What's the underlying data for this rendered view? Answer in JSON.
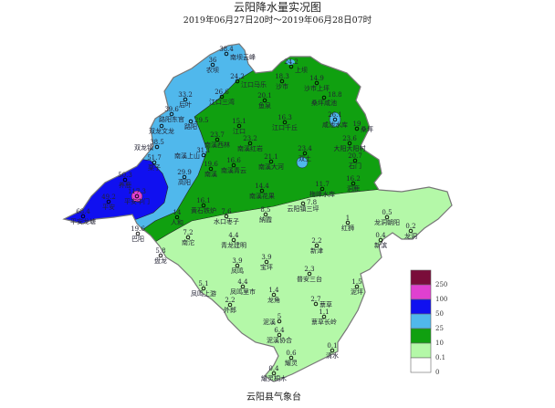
{
  "title": "云阳降水量实况图",
  "subtitle": "2019年06月27日20时～2019年06月28日07时",
  "footer": "云阳县气象台",
  "legend": [
    {
      "label": "250",
      "color": "#7a0d3a"
    },
    {
      "label": "100",
      "color": "#e040d0"
    },
    {
      "label": "50",
      "color": "#1010f0"
    },
    {
      "label": "25",
      "color": "#50b8ec"
    },
    {
      "label": "10",
      "color": "#10a010"
    },
    {
      "label": "0.1",
      "color": "#b4f8a8"
    },
    {
      "label": "0",
      "color": "#ffffff"
    }
  ],
  "stations": [
    {
      "value": "38.4",
      "name": "南坝云峰"
    },
    {
      "value": "36",
      "name": "农坝"
    },
    {
      "value": "24.2",
      "name": "江口马乐"
    },
    {
      "value": "26.6",
      "name": "江口三湾"
    },
    {
      "value": "33.2",
      "name": "后叶"
    },
    {
      "value": "39.6",
      "name": "路阳东官"
    },
    {
      "value": "29.5",
      "name": "路阳"
    },
    {
      "value": "",
      "name": "双龙文龙"
    },
    {
      "value": "15.1",
      "name": "江口"
    },
    {
      "value": "23.7",
      "name": "南溪西林"
    },
    {
      "value": "23.2",
      "name": "南溪红岩"
    },
    {
      "value": "38.5",
      "name": "双龙镇"
    },
    {
      "value": "31.1",
      "name": "南溪上山"
    },
    {
      "value": "51.7",
      "name": "栗子"
    },
    {
      "value": "19.6",
      "name": "南溪"
    },
    {
      "value": "16.6",
      "name": "南溪青云"
    },
    {
      "value": "29.9",
      "name": "高阳"
    },
    {
      "value": "50.3",
      "name": "养鹿"
    },
    {
      "value": "117.3",
      "name": "平安中门"
    },
    {
      "value": "49.2",
      "name": "平安"
    },
    {
      "value": "68.4",
      "name": "平安龙塘"
    },
    {
      "value": "16.1",
      "name": "黄石铁炉"
    },
    {
      "value": "14",
      "name": "人和"
    },
    {
      "value": "7.6",
      "name": "水口枣子"
    },
    {
      "value": "24.2",
      "name": "上坝"
    },
    {
      "value": "18.3",
      "name": "沙市"
    },
    {
      "value": "14.9",
      "name": "沙市上坪"
    },
    {
      "value": "18.8",
      "name": "桑坪咸池"
    },
    {
      "value": "20.1",
      "name": "鱼泉"
    },
    {
      "value": "16.3",
      "name": "江口千丘"
    },
    {
      "value": "26.1",
      "name": "咸池水库"
    },
    {
      "value": "19",
      "name": "桑坪"
    },
    {
      "value": "23.6",
      "name": "大阳大阳村"
    },
    {
      "value": "23.4",
      "name": "双土"
    },
    {
      "value": "21.1",
      "name": "南溪大河"
    },
    {
      "value": "20.7",
      "name": "石门"
    },
    {
      "value": "16.2",
      "name": "洞鹿"
    },
    {
      "value": "11.7",
      "name": "梅峰水库"
    },
    {
      "value": "14.4",
      "name": "南溪花果"
    },
    {
      "value": "7.8",
      "name": "云阳镇三坪"
    },
    {
      "value": "8.5",
      "name": "納霞"
    },
    {
      "value": "0.5",
      "name": "龙洞朝阳"
    },
    {
      "value": "1",
      "name": "红狮"
    },
    {
      "value": "0.2",
      "name": "龙洞"
    },
    {
      "value": "0.4",
      "name": "新滨"
    },
    {
      "value": "2.2",
      "name": "新津"
    },
    {
      "value": "3.9",
      "name": "宝坪"
    },
    {
      "value": "2.3",
      "name": "普安三台"
    },
    {
      "value": "1.5",
      "name": "泥坪"
    },
    {
      "value": "1.4",
      "name": "龙角"
    },
    {
      "value": "2.7",
      "name": "蔈草"
    },
    {
      "value": "1.1",
      "name": "蔈草长岭"
    },
    {
      "value": "5",
      "name": "泥溪"
    },
    {
      "value": "6.4",
      "name": "泥溪协合"
    },
    {
      "value": "0.1",
      "name": "清水"
    },
    {
      "value": "0.6",
      "name": "耀灵"
    },
    {
      "value": "0.4",
      "name": "耀灵桐木"
    },
    {
      "value": "19.6",
      "name": "巴阳"
    },
    {
      "value": "7.2",
      "name": "南沱"
    },
    {
      "value": "5.8",
      "name": "盘龙"
    },
    {
      "value": "4.4",
      "name": "青龙建明"
    },
    {
      "value": "3.9",
      "name": "凤鸣"
    },
    {
      "value": "5.1",
      "name": "凤鸣上游"
    },
    {
      "value": "4.4",
      "name": "凤鸣里市"
    },
    {
      "value": "2.2",
      "name": "外郎"
    }
  ]
}
